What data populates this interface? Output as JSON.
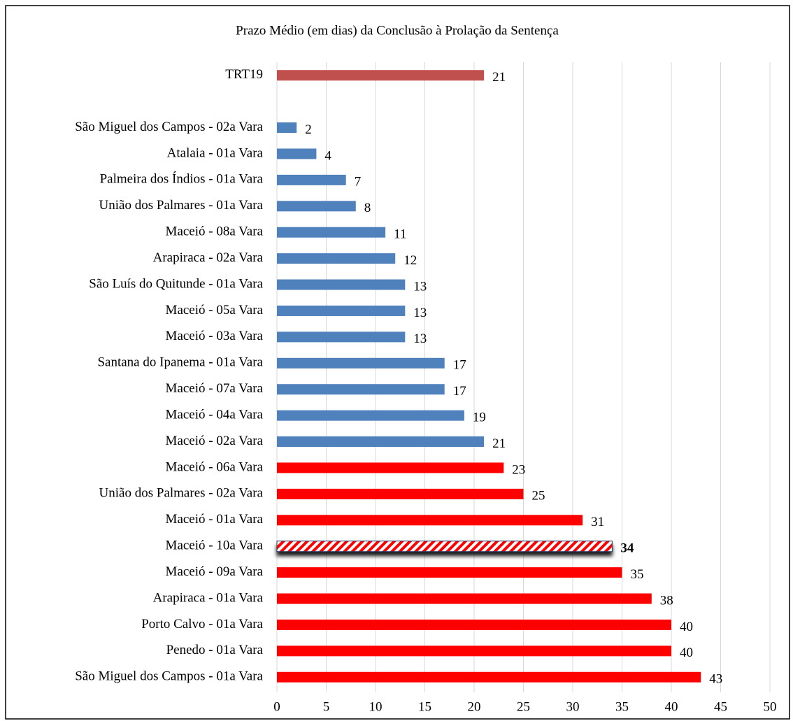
{
  "chart_data": {
    "type": "bar",
    "orientation": "horizontal",
    "title": "Prazo Médio (em dias) da Conclusão à Prolação da Sentença",
    "categories": [
      "TRT19",
      null,
      "São Miguel dos Campos  - 02a Vara",
      "Atalaia  - 01a Vara",
      "Palmeira dos Índios  - 01a Vara",
      "União dos Palmares  - 01a Vara",
      "Maceió  - 08a Vara",
      "Arapiraca  - 02a Vara",
      "São Luís do Quitunde  - 01a Vara",
      "Maceió  - 05a Vara",
      "Maceió  - 03a Vara",
      "Santana do Ipanema  - 01a Vara",
      "Maceió  - 07a Vara",
      "Maceió  - 04a Vara",
      "Maceió  - 02a Vara",
      "Maceió  - 06a Vara",
      "União dos Palmares  - 02a Vara",
      "Maceió  - 01a Vara",
      "Maceió  - 10a Vara",
      "Maceió  - 09a Vara",
      "Arapiraca  - 01a Vara",
      "Porto Calvo  - 01a Vara",
      "Penedo  - 01a Vara",
      "São Miguel dos Campos  - 01a Vara"
    ],
    "values": [
      21,
      null,
      2,
      4,
      7,
      8,
      11,
      12,
      13,
      13,
      13,
      17,
      17,
      19,
      21,
      23,
      25,
      31,
      34,
      35,
      38,
      40,
      40,
      43
    ],
    "colors": [
      "#c0504d",
      null,
      "#4f81bd",
      "#4f81bd",
      "#4f81bd",
      "#4f81bd",
      "#4f81bd",
      "#4f81bd",
      "#4f81bd",
      "#4f81bd",
      "#4f81bd",
      "#4f81bd",
      "#4f81bd",
      "#4f81bd",
      "#4f81bd",
      "#ff0000",
      "#ff0000",
      "#ff0000",
      "#ff0000",
      "#ff0000",
      "#ff0000",
      "#ff0000",
      "#ff0000",
      "#ff0000"
    ],
    "hatched": [
      18
    ],
    "xlim": [
      0,
      50
    ],
    "xticks": [
      0,
      5,
      10,
      15,
      20,
      25,
      30,
      35,
      40,
      45,
      50
    ],
    "grid": true
  }
}
